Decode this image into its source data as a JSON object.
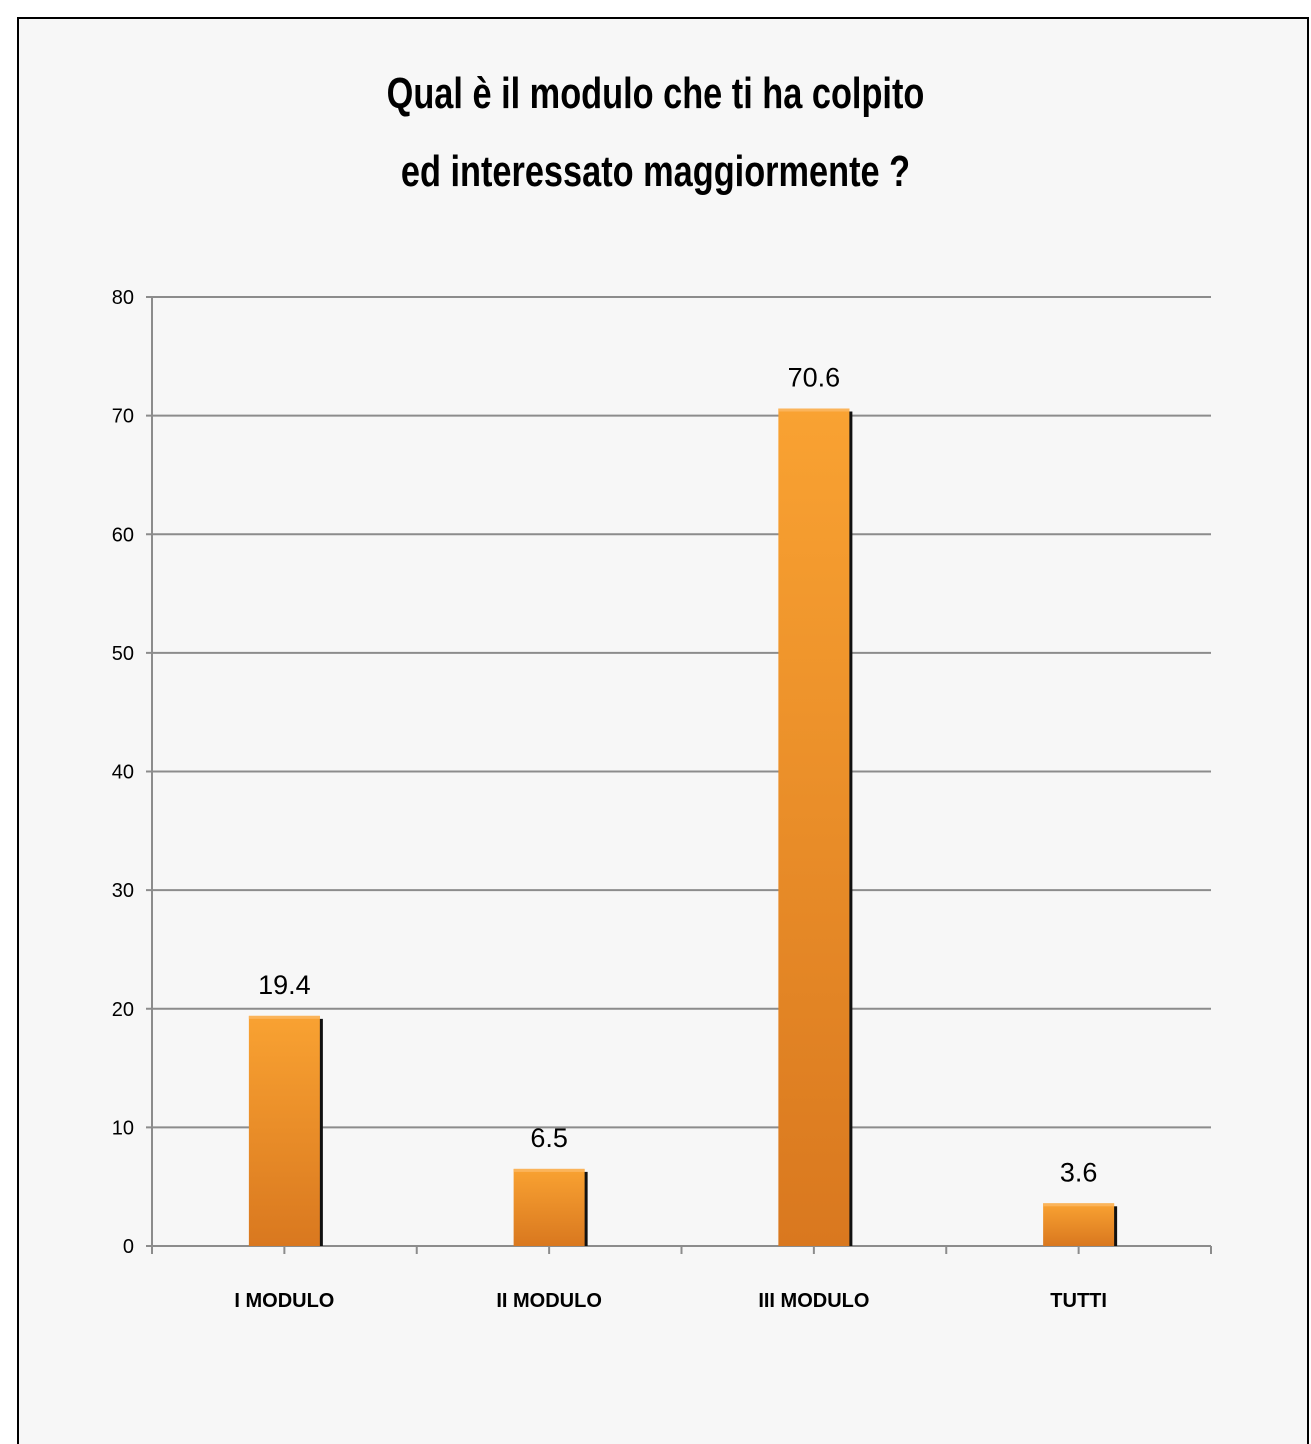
{
  "chart_data": {
    "type": "bar",
    "title_lines": [
      "Qual è il modulo che ti ha colpito",
      "ed interessato maggiormente ?"
    ],
    "categories": [
      "I MODULO",
      "II MODULO",
      "III MODULO",
      "TUTTI"
    ],
    "values": [
      19.4,
      6.5,
      70.6,
      3.6
    ],
    "data_labels": [
      "19.4",
      "6.5",
      "70.6",
      "3.6"
    ],
    "ylim": [
      0,
      80
    ],
    "yticks": [
      0,
      10,
      20,
      30,
      40,
      50,
      60,
      70,
      80
    ],
    "grid": true,
    "legend": "none",
    "bar_color_top": "#f9a232",
    "bar_color_bottom": "#d9781f",
    "bar_shadow_color": "#111111",
    "gridline_color": "#8c8c8c",
    "background_color": "#f7f7f7"
  }
}
